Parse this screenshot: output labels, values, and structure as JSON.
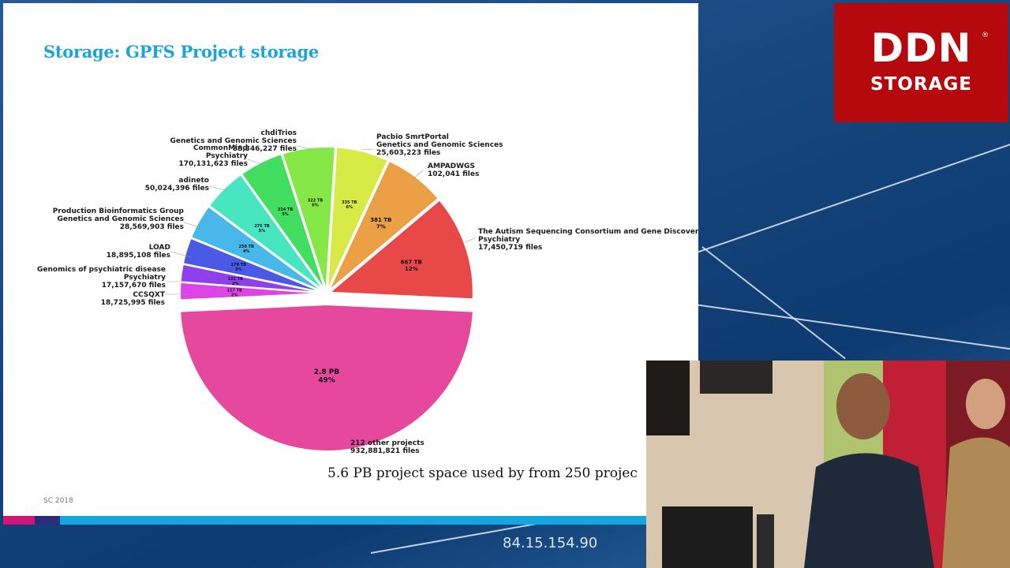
{
  "slide": {
    "title": "Storage: GPFS Project storage",
    "caption": "5.6 PB project space used by from 250 projec",
    "footer": "SC 2018"
  },
  "logo": {
    "line1": "DDN",
    "line2": "STORAGE",
    "reg": "®"
  },
  "overlay_text": "84.15.154.90",
  "chart_data": {
    "type": "pie",
    "title": "",
    "slices": [
      {
        "label_lines": [
          "212 other projects",
          "932,881,821 files"
        ],
        "value": "2.8 PB",
        "percent": 49,
        "display_pct": "49%",
        "color": "#e6489e"
      },
      {
        "label_lines": [
          "CCSQXT",
          "18,725,995 files"
        ],
        "value": "117 TB",
        "percent": 2,
        "display_pct": "2%",
        "color": "#dc44e6"
      },
      {
        "label_lines": [
          "Genomics of psychiatric disease",
          "Psychiatry",
          "17,157,670 files"
        ],
        "value": "122 TB",
        "percent": 2,
        "display_pct": "2%",
        "color": "#8f40ec"
      },
      {
        "label_lines": [
          "LOAD",
          "18,895,108 files"
        ],
        "value": "179 TB",
        "percent": 3,
        "display_pct": "3%",
        "color": "#4a5ae6"
      },
      {
        "label_lines": [
          "Production Bioinformatics Group",
          "Genetics and Genomic Sciences",
          "28,569,903 files"
        ],
        "value": "250 TB",
        "percent": 4,
        "display_pct": "4%",
        "color": "#48b8ea"
      },
      {
        "label_lines": [
          "adineto",
          "50,024,396 files"
        ],
        "value": "275 TB",
        "percent": 5,
        "display_pct": "5%",
        "color": "#48e6c0"
      },
      {
        "label_lines": [
          "CommonMind",
          "Psychiatry",
          "170,131,623 files"
        ],
        "value": "314 TB",
        "percent": 5,
        "display_pct": "5%",
        "color": "#42de60"
      },
      {
        "label_lines": [
          "chdiTrios",
          "Genetics and Genomic Sciences",
          "88,346,227 files"
        ],
        "value": "322 TB",
        "percent": 6,
        "display_pct": "6%",
        "color": "#86e846"
      },
      {
        "label_lines": [
          "Pacbio SmrtPortal",
          "Genetics and Genomic Sciences",
          "25,603,223 files"
        ],
        "value": "335 TB",
        "percent": 6,
        "display_pct": "6%",
        "color": "#d7ea46"
      },
      {
        "label_lines": [
          "AMPADWGS",
          "102,041 files"
        ],
        "value": "381 TB",
        "percent": 7,
        "display_pct": "7%",
        "color": "#eca046"
      },
      {
        "label_lines": [
          "The Autism Sequencing Consortium and Gene Discovery",
          "Psychiatry",
          "17,450,719 files"
        ],
        "value": "667 TB",
        "percent": 12,
        "display_pct": "12%",
        "color": "#e84848"
      }
    ]
  }
}
